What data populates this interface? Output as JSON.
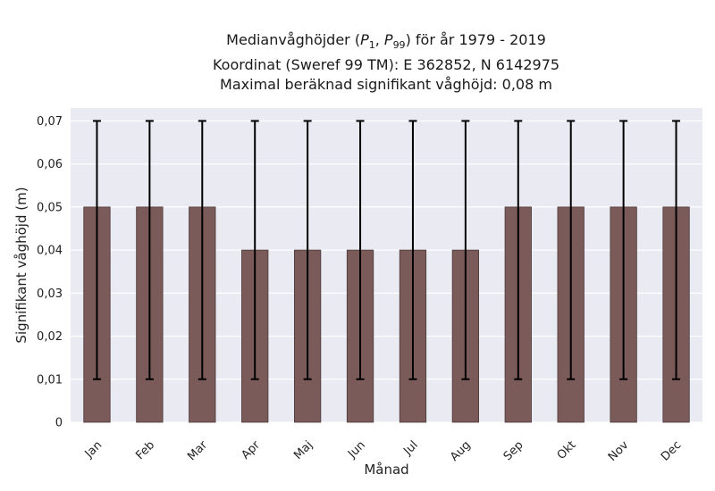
{
  "chart_data": {
    "type": "bar",
    "title_lines": [
      "Medianvåghöjder (P1, P99) för år 1979 - 2019",
      "Koordinat (Sweref 99 TM): E 362852, N 6142975",
      "Maximal beräknad signifikant våghöjd: 0,08 m"
    ],
    "xlabel": "Månad",
    "ylabel": "Signifikant våghöjd (m)",
    "categories": [
      "Jan",
      "Feb",
      "Mar",
      "Apr",
      "Maj",
      "Jun",
      "Jul",
      "Aug",
      "Sep",
      "Okt",
      "Nov",
      "Dec"
    ],
    "values": [
      0.05,
      0.05,
      0.05,
      0.04,
      0.04,
      0.04,
      0.04,
      0.04,
      0.05,
      0.05,
      0.05,
      0.05
    ],
    "p1": [
      0.01,
      0.01,
      0.01,
      0.01,
      0.01,
      0.01,
      0.01,
      0.01,
      0.01,
      0.01,
      0.01,
      0.01
    ],
    "p99": [
      0.07,
      0.07,
      0.07,
      0.07,
      0.07,
      0.07,
      0.07,
      0.07,
      0.07,
      0.07,
      0.07,
      0.07
    ],
    "ylim": [
      0,
      0.073
    ],
    "yticks": [
      0,
      0.01,
      0.02,
      0.03,
      0.04,
      0.05,
      0.06,
      0.07
    ],
    "ytick_labels": [
      "0",
      "0,01",
      "0,02",
      "0,03",
      "0,04",
      "0,05",
      "0,06",
      "0,07"
    ],
    "grid": true,
    "colors": {
      "bar": "#7b5a5a",
      "bar_edge": "#4a3838",
      "errorbar": "#000000",
      "plot_background": "#eaeaf2",
      "grid": "#ffffff"
    }
  }
}
